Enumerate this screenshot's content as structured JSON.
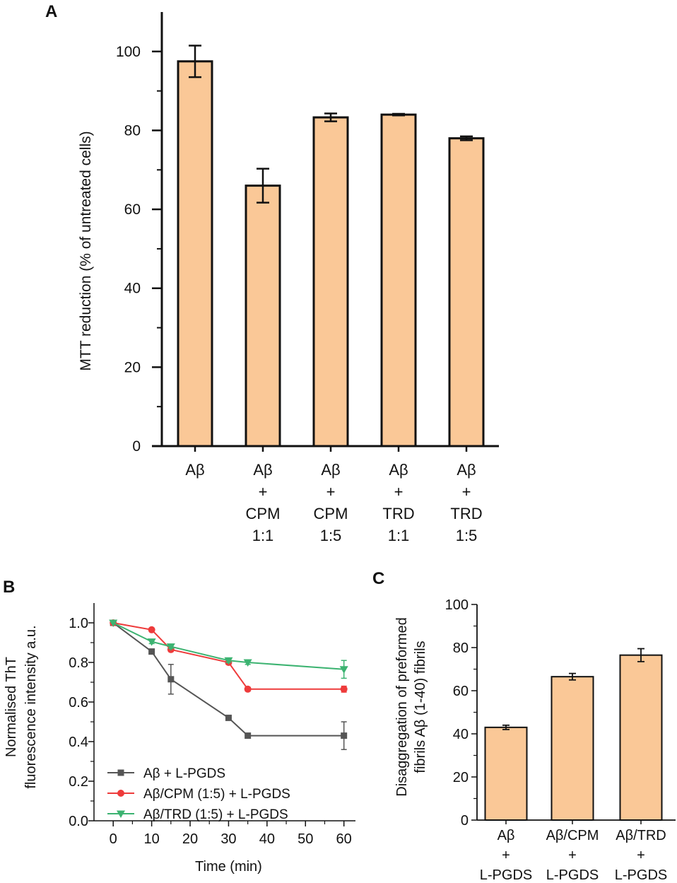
{
  "colors": {
    "bar_fill": "#fac897",
    "series": [
      "#555555",
      "#ee3b3b",
      "#3cb371"
    ]
  },
  "chart_data": [
    {
      "panel": "A",
      "type": "bar",
      "categories": [
        [
          "Aβ"
        ],
        [
          "Aβ",
          "+",
          "CPM",
          "1:1"
        ],
        [
          "Aβ",
          "+",
          "CPM",
          "1:5"
        ],
        [
          "Aβ",
          "+",
          "TRD",
          "1:1"
        ],
        [
          "Aβ",
          "+",
          "TRD",
          "1:5"
        ]
      ],
      "values": [
        97.5,
        66,
        83.3,
        84,
        78
      ],
      "errors": [
        4,
        4.3,
        1,
        0.2,
        0.5
      ],
      "ylabel": "MTT reduction (% of untreated cells)",
      "xlabel": "",
      "ylim": [
        0,
        110
      ],
      "yticks": [
        "0",
        "20",
        "40",
        "60",
        "80",
        "100"
      ]
    },
    {
      "panel": "B",
      "type": "line",
      "xlabel": "Time (min)",
      "ylabel_lines": [
        "Normalised ThT",
        "fluorescence intensity a.u."
      ],
      "xlim": [
        -5,
        63
      ],
      "ylim": [
        0,
        1.1
      ],
      "xticks": [
        "0",
        "10",
        "20",
        "30",
        "40",
        "50",
        "60"
      ],
      "yticks": [
        "0.0",
        "0.2",
        "0.4",
        "0.6",
        "0.8",
        "1.0"
      ],
      "x": [
        0,
        10,
        15,
        30,
        35,
        60
      ],
      "series": [
        {
          "name": "Aβ + L-PGDS",
          "marker": "square",
          "values": [
            1.0,
            0.855,
            0.715,
            0.52,
            0.43,
            0.43
          ],
          "errors": [
            0,
            0.01,
            0.075,
            0.01,
            0.01,
            0.07
          ]
        },
        {
          "name": "Aβ/CPM (1:5) + L-PGDS",
          "marker": "circle",
          "values": [
            1.0,
            0.965,
            0.865,
            0.8,
            0.665,
            0.665
          ],
          "errors": [
            0,
            0.005,
            0.01,
            0.01,
            0.01,
            0.015
          ]
        },
        {
          "name": "Aβ/TRD (1:5) + L-PGDS",
          "marker": "triangle-down",
          "values": [
            1.0,
            0.905,
            0.88,
            0.81,
            0.8,
            0.765
          ],
          "errors": [
            0,
            0.01,
            0.01,
            0.01,
            0.01,
            0.045
          ]
        }
      ],
      "legend_position": "bottom-left"
    },
    {
      "panel": "C",
      "type": "bar",
      "categories": [
        [
          "Aβ",
          "+",
          "L-PGDS"
        ],
        [
          "Aβ/CPM",
          "+",
          "L-PGDS"
        ],
        [
          "Aβ/TRD",
          "+",
          "L-PGDS"
        ]
      ],
      "values": [
        43,
        66.5,
        76.5
      ],
      "errors": [
        1,
        1.5,
        3
      ],
      "ylabel_lines": [
        "Disaggregation of preformed",
        "fibrils Aβ (1-40) fibrils"
      ],
      "xlabel": "",
      "ylim": [
        0,
        100
      ],
      "yticks": [
        "0",
        "20",
        "40",
        "60",
        "80",
        "100"
      ]
    }
  ],
  "labels": {
    "panel_a": "A",
    "panel_b": "B",
    "panel_c": "C"
  }
}
